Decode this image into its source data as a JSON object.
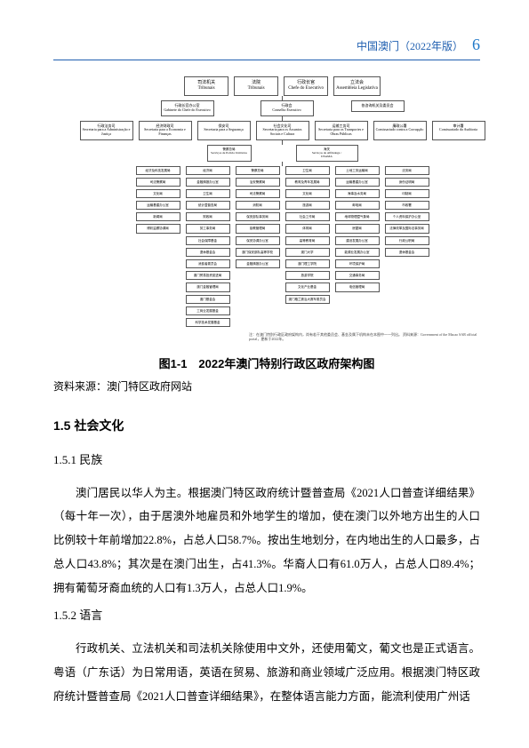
{
  "header": {
    "title": "中国澳门（2022年版）",
    "page_number": "6"
  },
  "colors": {
    "header_text": "#1f5fb0",
    "page_number": "#1f78c8",
    "rule": "#1f5fb0",
    "node_border": "#555555",
    "body_text": "#000000"
  },
  "orgchart": {
    "type": "tree",
    "row_top": [
      {
        "zh": "司法机关",
        "pt": "Tribunais"
      },
      {
        "zh": "法院",
        "pt": "Tribunais"
      },
      {
        "zh": "行政长官",
        "pt": "Chefe do Executivo"
      },
      {
        "zh": "立法会",
        "pt": "Assembleia Legislativa"
      }
    ],
    "row_second": [
      {
        "zh": "行政长官办公室",
        "pt": "Gabinete do Chefe do Executivo"
      },
      {
        "zh": "行政会",
        "pt": "Conselho Executivo"
      },
      {
        "zh": "各咨询机关及委员会",
        "pt": ""
      }
    ],
    "sectors": [
      {
        "zh": "行政法务司",
        "pt": "Secretaria para a Administração e Justiça"
      },
      {
        "zh": "经济财政司",
        "pt": "Secretaria para a Economia e Finanças"
      },
      {
        "zh": "保安司",
        "pt": "Secretaria para a Segurança"
      },
      {
        "zh": "社会文化司",
        "pt": "Secretaria para os Assuntos Sociais e Cultura"
      },
      {
        "zh": "运输工务司",
        "pt": "Secretaria para os Transportes e Obras Públicas"
      },
      {
        "zh": "廉政公署",
        "pt": "Comissariado contra a Corrupção"
      },
      {
        "zh": "审计署",
        "pt": "Comissariado da Auditoria"
      }
    ],
    "sub_layer": [
      {
        "zh": "警察总局",
        "pt": "Serviços de Polícia Unitários"
      },
      {
        "zh": "海关",
        "pt": "Serviços de Alfândega /\nDSAMA"
      }
    ],
    "columns": [
      [
        "经济及科技发展局",
        "司法警察局",
        "文化局",
        "运输基建办公室",
        "新闻局",
        "博彩监察协调局"
      ],
      [
        "经济局",
        "金融情报办公室",
        "卫生局",
        "统计暨普查局",
        "财政局",
        "劳工事务局",
        "社会保障基金",
        "退休基金会",
        "消费者委员会",
        "澳门贸易投资促进局",
        "澳门金融管理局",
        "澳门基金会",
        "工商业发展基金",
        "科学技术发展基金"
      ],
      [
        "警察总局",
        "治安警察局",
        "司法警察局",
        "消防局",
        "保安部队事务局",
        "惩教管理局",
        "保安协调办公室",
        "澳门保安部队高等学校",
        "金融情报办公室"
      ],
      [
        "卫生局",
        "教育及青年发展局",
        "文化局",
        "旅游局",
        "社会工作局",
        "体育局",
        "高等教育局",
        "澳门大学",
        "澳门理工学院",
        "旅游学院",
        "文化产业基金",
        "澳门格兰披治大赛车委员会"
      ],
      [
        "土地工务运输局",
        "运输基建办公室",
        "海事及水务局",
        "邮电局",
        "地球物理暨气象局",
        "房屋局",
        "建设发展办公室",
        "能源业发展办公室",
        "环境保护局",
        "交通事务局",
        "电信管理局"
      ],
      [
        "法务局",
        "身份证明局",
        "印制局",
        "市政署",
        "个人资料保护办公室",
        "法律改革及国际法事务局",
        "行政公职局",
        "退休基金会"
      ]
    ],
    "footnote": "注：在澳门特别行政区政府架构内，尚有若干其他委员会、基金及属下机构未在本图中一一列出。\n资料来源：Government of the Macao SAR official portal，更新于2022年。"
  },
  "figure": {
    "caption": "图1-1　2022年澳门特别行政区政府架构图",
    "source": "资料来源：澳门特区政府网站"
  },
  "section_1_5": {
    "title": "1.5 社会文化"
  },
  "section_1_5_1": {
    "title": "1.5.1 民族",
    "para": "澳门居民以华人为主。根据澳门特区政府统计暨普查局《2021人口普查详细结果》（每十年一次），由于居澳外地雇员和外地学生的增加，使在澳门以外地方出生的人口比例较十年前增加22.8%，占总人口58.7%。按出生地划分，在内地出生的人口最多，占总人口43.8%；其次是在澳门出生，占41.3%。华裔人口有61.0万人，占总人口89.4%；拥有葡萄牙裔血统的人口有1.3万人，占总人口1.9%。"
  },
  "section_1_5_2": {
    "title": "1.5.2 语言",
    "para": "行政机关、立法机关和司法机关除使用中文外，还使用葡文，葡文也是正式语言。粤语（广东话）为日常用语，英语在贸易、旅游和商业领域广泛应用。根据澳门特区政府统计暨普查局《2021人口普查详细结果》，在整体语言能力方面，能流利使用广州话"
  }
}
